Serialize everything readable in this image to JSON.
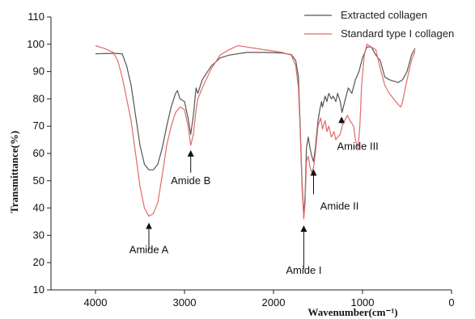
{
  "chart_data": {
    "type": "line",
    "xlabel": "Wavenumber(cm⁻¹)",
    "ylabel": "Transmittance(%)",
    "xlim": [
      4500,
      0
    ],
    "ylim": [
      10,
      110
    ],
    "x_ticks": [
      4000,
      3000,
      2000,
      1000,
      0
    ],
    "y_ticks": [
      10,
      20,
      30,
      40,
      50,
      60,
      70,
      80,
      90,
      100,
      110
    ],
    "grid": false,
    "legend_position": "top-right",
    "series": [
      {
        "name": "Extracted collagen",
        "color": "#555555",
        "points": [
          [
            4000,
            96.5
          ],
          [
            3800,
            96.7
          ],
          [
            3700,
            96.5
          ],
          [
            3650,
            92
          ],
          [
            3600,
            85
          ],
          [
            3550,
            74
          ],
          [
            3500,
            63
          ],
          [
            3450,
            56
          ],
          [
            3400,
            54
          ],
          [
            3350,
            54
          ],
          [
            3300,
            56
          ],
          [
            3250,
            62
          ],
          [
            3200,
            70
          ],
          [
            3150,
            77
          ],
          [
            3100,
            82
          ],
          [
            3080,
            83
          ],
          [
            3050,
            80
          ],
          [
            3000,
            79
          ],
          [
            2960,
            73
          ],
          [
            2930,
            67
          ],
          [
            2900,
            74
          ],
          [
            2870,
            84
          ],
          [
            2850,
            82
          ],
          [
            2800,
            87
          ],
          [
            2700,
            92
          ],
          [
            2600,
            95
          ],
          [
            2500,
            96
          ],
          [
            2300,
            97
          ],
          [
            2100,
            97
          ],
          [
            1900,
            96.8
          ],
          [
            1800,
            96.2
          ],
          [
            1750,
            94
          ],
          [
            1720,
            88
          ],
          [
            1700,
            70
          ],
          [
            1680,
            50
          ],
          [
            1660,
            37
          ],
          [
            1645,
            45
          ],
          [
            1630,
            62
          ],
          [
            1610,
            66
          ],
          [
            1590,
            62
          ],
          [
            1570,
            59
          ],
          [
            1550,
            57
          ],
          [
            1530,
            62
          ],
          [
            1500,
            72
          ],
          [
            1480,
            76
          ],
          [
            1460,
            79
          ],
          [
            1450,
            77
          ],
          [
            1420,
            81
          ],
          [
            1400,
            79
          ],
          [
            1380,
            82
          ],
          [
            1350,
            80
          ],
          [
            1330,
            81
          ],
          [
            1300,
            79
          ],
          [
            1280,
            82
          ],
          [
            1250,
            79
          ],
          [
            1230,
            75
          ],
          [
            1200,
            79
          ],
          [
            1160,
            84
          ],
          [
            1120,
            82
          ],
          [
            1080,
            87
          ],
          [
            1040,
            90
          ],
          [
            1000,
            95
          ],
          [
            950,
            99
          ],
          [
            900,
            99
          ],
          [
            850,
            96
          ],
          [
            800,
            94
          ],
          [
            750,
            88
          ],
          [
            700,
            87
          ],
          [
            650,
            86.5
          ],
          [
            600,
            86
          ],
          [
            550,
            87
          ],
          [
            500,
            90
          ],
          [
            450,
            96
          ],
          [
            410,
            98.5
          ]
        ]
      },
      {
        "name": "Standard type I collagen",
        "color": "#e26a6a",
        "points": [
          [
            4000,
            99.5
          ],
          [
            3900,
            98.5
          ],
          [
            3800,
            97
          ],
          [
            3750,
            94
          ],
          [
            3700,
            88
          ],
          [
            3650,
            80
          ],
          [
            3600,
            72
          ],
          [
            3550,
            60
          ],
          [
            3500,
            48
          ],
          [
            3450,
            40
          ],
          [
            3400,
            37
          ],
          [
            3350,
            38
          ],
          [
            3300,
            42
          ],
          [
            3250,
            52
          ],
          [
            3200,
            63
          ],
          [
            3150,
            70
          ],
          [
            3100,
            75
          ],
          [
            3050,
            77
          ],
          [
            3000,
            76
          ],
          [
            2960,
            70
          ],
          [
            2930,
            63
          ],
          [
            2900,
            67
          ],
          [
            2870,
            76
          ],
          [
            2850,
            80
          ],
          [
            2800,
            84
          ],
          [
            2700,
            91
          ],
          [
            2600,
            96
          ],
          [
            2500,
            98
          ],
          [
            2400,
            99.5
          ],
          [
            2300,
            99
          ],
          [
            2100,
            98
          ],
          [
            1900,
            97
          ],
          [
            1800,
            96
          ],
          [
            1750,
            92
          ],
          [
            1720,
            84
          ],
          [
            1700,
            68
          ],
          [
            1680,
            48
          ],
          [
            1660,
            36
          ],
          [
            1645,
            42
          ],
          [
            1630,
            57
          ],
          [
            1610,
            59
          ],
          [
            1590,
            55
          ],
          [
            1570,
            53
          ],
          [
            1550,
            55
          ],
          [
            1530,
            60
          ],
          [
            1500,
            70
          ],
          [
            1470,
            73
          ],
          [
            1450,
            69
          ],
          [
            1420,
            72
          ],
          [
            1400,
            68
          ],
          [
            1380,
            70
          ],
          [
            1350,
            66
          ],
          [
            1320,
            68
          ],
          [
            1300,
            65
          ],
          [
            1280,
            66
          ],
          [
            1250,
            67
          ],
          [
            1230,
            70
          ],
          [
            1200,
            72
          ],
          [
            1170,
            74
          ],
          [
            1140,
            72
          ],
          [
            1100,
            70
          ],
          [
            1080,
            65
          ],
          [
            1050,
            62
          ],
          [
            1030,
            70
          ],
          [
            1010,
            85
          ],
          [
            980,
            96
          ],
          [
            950,
            100
          ],
          [
            900,
            99
          ],
          [
            850,
            98
          ],
          [
            800,
            91
          ],
          [
            750,
            85
          ],
          [
            700,
            82
          ],
          [
            650,
            80
          ],
          [
            600,
            78
          ],
          [
            570,
            77
          ],
          [
            550,
            79
          ],
          [
            500,
            87
          ],
          [
            450,
            94
          ],
          [
            410,
            97.5
          ]
        ]
      }
    ],
    "annotations": [
      {
        "label": "Amide A",
        "x": 3400,
        "y": 37,
        "direction": "up"
      },
      {
        "label": "Amide B",
        "x": 2930,
        "y": 63,
        "direction": "down"
      },
      {
        "label": "Amide I",
        "x": 1660,
        "y": 36,
        "direction": "up"
      },
      {
        "label": "Amide II",
        "x": 1550,
        "y": 56,
        "direction": "up"
      },
      {
        "label": "Amide III",
        "x": 1235,
        "y": 75,
        "direction": "up"
      }
    ]
  }
}
